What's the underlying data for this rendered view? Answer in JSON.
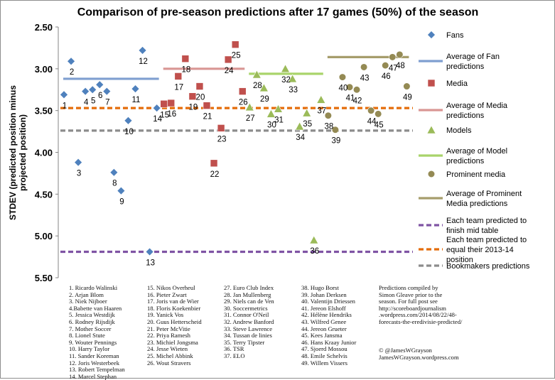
{
  "chart_data": {
    "type": "scatter",
    "title": "Comparison  of pre-season predictions after 17 games (50%) of the season",
    "ylabel": "STDEV (predicted position minus projected position)",
    "ylim": [
      5.5,
      2.5
    ],
    "y_inverted": true,
    "y_ticks": [
      "2.50",
      "3.00",
      "3.50",
      "4.00",
      "4.50",
      "5.00",
      "5.50"
    ],
    "grid": false,
    "legend_position": "right",
    "x_axis": "predictor index (1-49), no tick labels",
    "series": [
      {
        "name": "Fans",
        "color": "#4f81bd",
        "marker": "diamond",
        "points": [
          [
            1,
            3.31
          ],
          [
            2,
            2.91
          ],
          [
            3,
            4.12
          ],
          [
            4,
            3.27
          ],
          [
            5,
            3.25
          ],
          [
            6,
            3.19
          ],
          [
            7,
            3.27
          ],
          [
            8,
            4.24
          ],
          [
            9,
            4.46
          ],
          [
            10,
            3.62
          ],
          [
            11,
            3.24
          ],
          [
            12,
            2.78
          ],
          [
            13,
            5.19
          ],
          [
            14,
            3.47
          ]
        ]
      },
      {
        "name": "Media",
        "color": "#c0504d",
        "marker": "square",
        "points": [
          [
            15,
            3.42
          ],
          [
            16,
            3.41
          ],
          [
            17,
            3.09
          ],
          [
            18,
            2.88
          ],
          [
            19,
            3.33
          ],
          [
            20,
            3.21
          ],
          [
            21,
            3.44
          ],
          [
            22,
            4.13
          ],
          [
            23,
            3.71
          ],
          [
            24,
            2.89
          ],
          [
            25,
            2.71
          ],
          [
            26,
            3.27
          ]
        ]
      },
      {
        "name": "Models",
        "color": "#9bbb59",
        "marker": "triangle",
        "points": [
          [
            27,
            3.46
          ],
          [
            28,
            3.07
          ],
          [
            29,
            3.23
          ],
          [
            30,
            3.54
          ],
          [
            31,
            3.48
          ],
          [
            32,
            3.0
          ],
          [
            33,
            3.12
          ],
          [
            34,
            3.69
          ],
          [
            35,
            3.53
          ],
          [
            36,
            5.05
          ],
          [
            37,
            3.37
          ]
        ]
      },
      {
        "name": "Prominent media",
        "color": "#948a54",
        "marker": "circle",
        "points": [
          [
            38,
            3.56
          ],
          [
            39,
            3.73
          ],
          [
            40,
            3.1
          ],
          [
            41,
            3.22
          ],
          [
            42,
            3.25
          ],
          [
            43,
            2.98
          ],
          [
            44,
            3.5
          ],
          [
            45,
            3.54
          ],
          [
            46,
            2.96
          ],
          [
            47,
            2.86
          ],
          [
            48,
            2.83
          ],
          [
            49,
            3.21
          ]
        ]
      }
    ],
    "averages": [
      {
        "name": "Average of Fan predictions",
        "color": "#7f9fd0",
        "value": 3.12,
        "x_from": 1,
        "x_to": 14
      },
      {
        "name": "Average of Media predictions",
        "color": "#d99694",
        "value": 3.0,
        "x_from": 15,
        "x_to": 26
      },
      {
        "name": "Average of Model predictions",
        "color": "#a9d46a",
        "value": 3.06,
        "x_from": 27,
        "x_to": 37
      },
      {
        "name": "Average of Prominent Media predictions",
        "color": "#a69d6c",
        "value": 2.86,
        "x_from": 38,
        "x_to": 49
      }
    ],
    "reference_lines": [
      {
        "name": "Each team predicted to finish mid table",
        "color": "#7f54a4",
        "value": 5.19
      },
      {
        "name": "Each team predicted to equal their 2013-14 position",
        "color": "#e46c0a",
        "value": 3.47
      },
      {
        "name": "Bookmakers predictions",
        "color": "#8c8c8c",
        "value": 3.74
      }
    ],
    "point_labels": [
      "1",
      "2",
      "3",
      "4",
      "5",
      "6",
      "7",
      "8",
      "9",
      "10",
      "11",
      "12",
      "13",
      "14",
      "15",
      "16",
      "17",
      "18",
      "19",
      "20",
      "21",
      "22",
      "23",
      "24",
      "25",
      "26",
      "27",
      "28",
      "29",
      "30",
      "31",
      "32",
      "33",
      "34",
      "35",
      "36",
      "37",
      "38",
      "39",
      "40",
      "41",
      "42",
      "43",
      "44",
      "45",
      "46",
      "47",
      "48",
      "49"
    ]
  },
  "legend": [
    {
      "label": "Fans",
      "kind": "marker",
      "marker": "diamond",
      "color": "#4f81bd"
    },
    {
      "label": "Average of Fan predictions",
      "kind": "line",
      "color": "#7f9fd0",
      "dash": false
    },
    {
      "label": "Media",
      "kind": "marker",
      "marker": "square",
      "color": "#c0504d"
    },
    {
      "label": "Average of Media predictions",
      "kind": "line",
      "color": "#d99694",
      "dash": false
    },
    {
      "label": "Models",
      "kind": "marker",
      "marker": "triangle",
      "color": "#9bbb59"
    },
    {
      "label": "Average of Model predictions",
      "kind": "line",
      "color": "#a9d46a",
      "dash": false
    },
    {
      "label": "Prominent media",
      "kind": "marker",
      "marker": "circle",
      "color": "#948a54"
    },
    {
      "label": "Average of Prominent Media predictions",
      "kind": "line",
      "color": "#a69d6c",
      "dash": false
    },
    {
      "label": "Each team predicted to finish mid table",
      "kind": "line",
      "color": "#7f54a4",
      "dash": true
    },
    {
      "label": "Each team predicted to equal their 2013-14 position",
      "kind": "line",
      "color": "#e46c0a",
      "dash": true
    },
    {
      "label": "Bookmakers predictions",
      "kind": "line",
      "color": "#8c8c8c",
      "dash": true
    }
  ],
  "predictors": {
    "col1": [
      "1. Ricardo Walinski",
      "2. Arjan Blom",
      "3. Niek Nijboer",
      "4.Babette van Haaren",
      "5. Jessica Westdijk",
      "6. Rodney Rijsdijk",
      "7. Mother Soccer",
      "8. Lionel Stute",
      "9. Wouter Pennings",
      "10. Harry Taylor",
      "11. Sander Koreman",
      "12. Joris Westerbeek",
      "13. Robert Tempelman",
      "14. Marcel Stephan"
    ],
    "col2": [
      "15. Nikos Overheul",
      "16. Pieter Zwart",
      "17. Joris van de Wier",
      "18. Floris Koekenbier",
      "19. Yanick Vos",
      "20. Guus Hetterscheid",
      "21. Peter McVitie",
      "22. Priya Ramesh",
      "23. Michiel Jongsma",
      "24. Jesse Wieten",
      "25. Michel Abbink",
      "26. Wout Stravers"
    ],
    "col3": [
      "27. Euro Club Index",
      "28. Jan Mullenberg",
      "29. Niels can de Ven",
      "30. Soccermetrics",
      "31. Connor O'Neil",
      "32. Andrew Banford",
      "33. Steve Lawrence",
      "34. Tussan de linies",
      "35. Terry Tipster",
      "36. TSR",
      "37. ELO"
    ],
    "col4": [
      "38. Hugo Borst",
      "39. Johan Derksen",
      "40. Valentijn Driessen",
      "41. Jereon Elshoff",
      "42. Hélène Hendriks",
      "43. Wilfred Genee",
      "44. Jereon Grueter",
      "45. Kees Jansma",
      "46. Hans Kraay Junior",
      "47. Sjoerd Mossou",
      "48. Emile Schelvis",
      "49. Willem Vissers"
    ]
  },
  "credits": {
    "note": "Predictions compiled by\nSimon Gleave prior to the\nseason. For full post see\nhttp://scoreboardjournalism\n.wordpress.com/2014/08/22/48-\nforecasts-the-eredivisie-predicted/",
    "author": "© @JamesWGrayson\nJamesWGrayson.wordpress.com"
  }
}
